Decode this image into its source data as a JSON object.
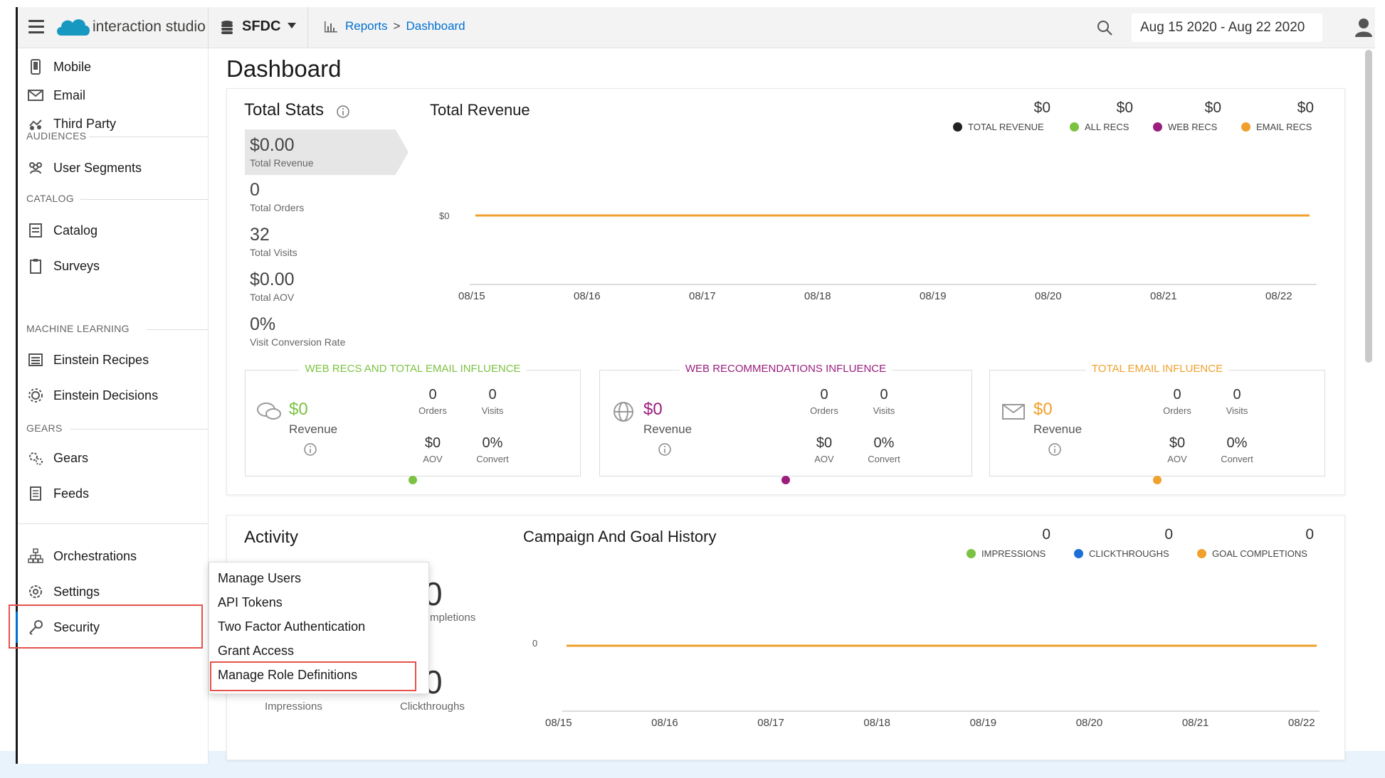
{
  "topbar": {
    "brand": "interaction studio",
    "org": "SFDC",
    "breadcrumb": [
      "Reports",
      "Dashboard"
    ],
    "breadcrumb_sep": ">",
    "date_range": "Aug 15 2020 - Aug 22 2020"
  },
  "sidebar": {
    "items": [
      {
        "label": "Mobile",
        "icon": "mobile-icon"
      },
      {
        "label": "Email",
        "icon": "email-icon"
      },
      {
        "label": "Third Party",
        "icon": "third-party-icon"
      },
      {
        "label": "User Segments",
        "icon": "user-segments-icon"
      },
      {
        "label": "Catalog",
        "icon": "catalog-icon"
      },
      {
        "label": "Surveys",
        "icon": "surveys-icon"
      },
      {
        "label": "Einstein Recipes",
        "icon": "recipes-icon"
      },
      {
        "label": "Einstein Decisions",
        "icon": "decisions-icon"
      },
      {
        "label": "Gears",
        "icon": "gears-icon"
      },
      {
        "label": "Feeds",
        "icon": "feeds-icon"
      },
      {
        "label": "Orchestrations",
        "icon": "orchestrations-icon"
      },
      {
        "label": "Settings",
        "icon": "settings-icon"
      },
      {
        "label": "Security",
        "icon": "key-icon"
      }
    ],
    "headings": [
      "AUDIENCES",
      "CATALOG",
      "MACHINE LEARNING",
      "GEARS"
    ]
  },
  "page": {
    "title": "Dashboard"
  },
  "total_stats": {
    "title": "Total Stats",
    "stats": [
      {
        "value": "$0.00",
        "label": "Total Revenue"
      },
      {
        "value": "0",
        "label": "Total Orders"
      },
      {
        "value": "32",
        "label": "Total Visits"
      },
      {
        "value": "$0.00",
        "label": "Total AOV"
      },
      {
        "value": "0%",
        "label": "Visit Conversion Rate"
      }
    ]
  },
  "total_revenue_chart": {
    "title": "Total Revenue",
    "legend": [
      {
        "value": "$0",
        "label": "TOTAL REVENUE",
        "color": "#222222"
      },
      {
        "value": "$0",
        "label": "ALL RECS",
        "color": "#7cc242"
      },
      {
        "value": "$0",
        "label": "WEB RECS",
        "color": "#9b1e7e"
      },
      {
        "value": "$0",
        "label": "EMAIL RECS",
        "color": "#f0a02c"
      }
    ],
    "y_tick": "$0",
    "x_ticks": [
      "08/15",
      "08/16",
      "08/17",
      "08/18",
      "08/19",
      "08/20",
      "08/21",
      "08/22"
    ]
  },
  "influence": [
    {
      "title": "WEB RECS AND TOTAL EMAIL INFLUENCE",
      "color": "#7cc242",
      "revenue": "$0",
      "revenue_label": "Revenue",
      "orders": "0",
      "orders_label": "Orders",
      "visits": "0",
      "visits_label": "Visits",
      "aov": "$0",
      "aov_label": "AOV",
      "convert": "0%",
      "convert_label": "Convert"
    },
    {
      "title": "WEB RECOMMENDATIONS INFLUENCE",
      "color": "#9b1e7e",
      "revenue": "$0",
      "revenue_label": "Revenue",
      "orders": "0",
      "orders_label": "Orders",
      "visits": "0",
      "visits_label": "Visits",
      "aov": "$0",
      "aov_label": "AOV",
      "convert": "0%",
      "convert_label": "Convert"
    },
    {
      "title": "TOTAL EMAIL INFLUENCE",
      "color": "#f0a02c",
      "revenue": "$0",
      "revenue_label": "Revenue",
      "orders": "0",
      "orders_label": "Orders",
      "visits": "0",
      "visits_label": "Visits",
      "aov": "$0",
      "aov_label": "AOV",
      "convert": "0%",
      "convert_label": "Convert"
    }
  ],
  "activity": {
    "title": "Activity",
    "top_value": "0",
    "top_label_partial": "mpletions",
    "impressions_label": "Impressions",
    "clickthroughs_value": "0",
    "clickthroughs_label": "Clickthroughs"
  },
  "campaign_chart": {
    "title": "Campaign And Goal History",
    "legend": [
      {
        "value": "0",
        "label": "IMPRESSIONS",
        "color": "#7cc242"
      },
      {
        "value": "0",
        "label": "CLICKTHROUGHS",
        "color": "#1b6fd6"
      },
      {
        "value": "0",
        "label": "GOAL COMPLETIONS",
        "color": "#f0a02c"
      }
    ],
    "y_tick": "0",
    "x_ticks": [
      "08/15",
      "08/16",
      "08/17",
      "08/18",
      "08/19",
      "08/20",
      "08/21",
      "08/22"
    ]
  },
  "security_menu": {
    "items": [
      "Manage Users",
      "API Tokens",
      "Two Factor Authentication",
      "Grant Access",
      "Manage Role Definitions"
    ]
  },
  "chart_data": [
    {
      "type": "line",
      "title": "Total Revenue",
      "x": [
        "08/15",
        "08/16",
        "08/17",
        "08/18",
        "08/19",
        "08/20",
        "08/21",
        "08/22"
      ],
      "series": [
        {
          "name": "TOTAL REVENUE",
          "values": [
            0,
            0,
            0,
            0,
            0,
            0,
            0,
            0
          ]
        },
        {
          "name": "ALL RECS",
          "values": [
            0,
            0,
            0,
            0,
            0,
            0,
            0,
            0
          ]
        },
        {
          "name": "WEB RECS",
          "values": [
            0,
            0,
            0,
            0,
            0,
            0,
            0,
            0
          ]
        },
        {
          "name": "EMAIL RECS",
          "values": [
            0,
            0,
            0,
            0,
            0,
            0,
            0,
            0
          ]
        }
      ]
    },
    {
      "type": "line",
      "title": "Campaign And Goal History",
      "x": [
        "08/15",
        "08/16",
        "08/17",
        "08/18",
        "08/19",
        "08/20",
        "08/21",
        "08/22"
      ],
      "series": [
        {
          "name": "IMPRESSIONS",
          "values": [
            0,
            0,
            0,
            0,
            0,
            0,
            0,
            0
          ]
        },
        {
          "name": "CLICKTHROUGHS",
          "values": [
            0,
            0,
            0,
            0,
            0,
            0,
            0,
            0
          ]
        },
        {
          "name": "GOAL COMPLETIONS",
          "values": [
            0,
            0,
            0,
            0,
            0,
            0,
            0,
            0
          ]
        }
      ]
    }
  ]
}
